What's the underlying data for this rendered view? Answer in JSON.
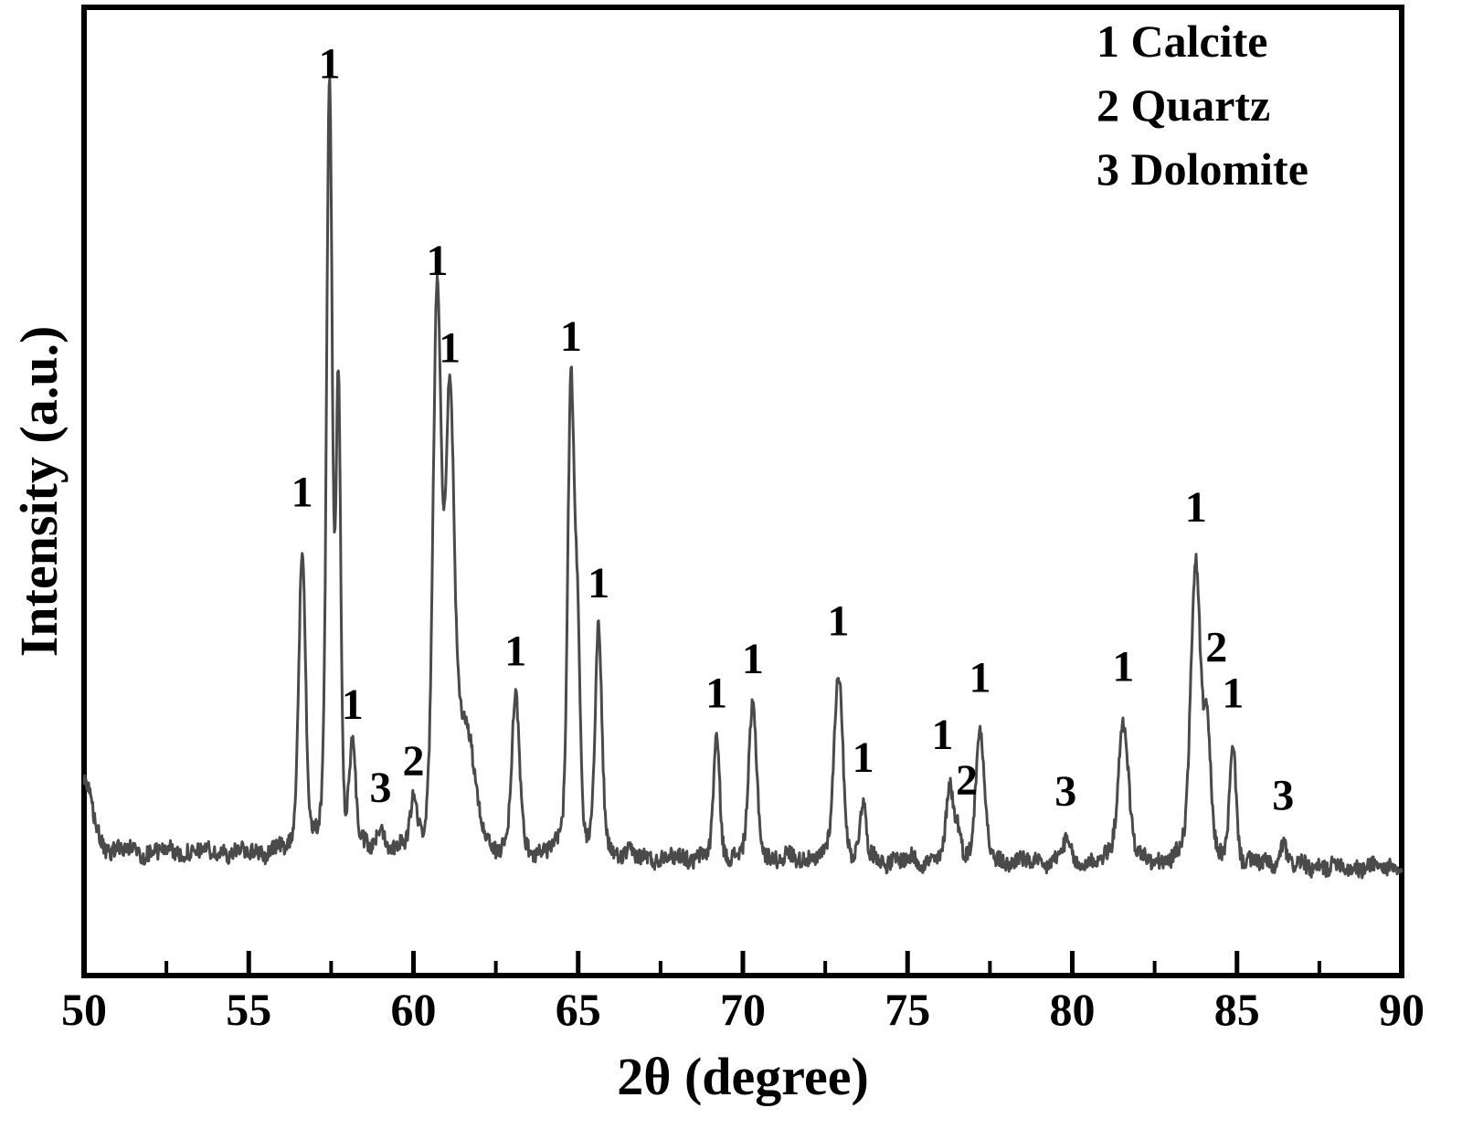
{
  "chart_data": {
    "type": "line",
    "title": "",
    "xlabel": "2θ (degree)",
    "ylabel": "Intensity (a.u.)",
    "xlim": [
      50,
      90
    ],
    "x_major_ticks": [
      50,
      55,
      60,
      65,
      70,
      75,
      80,
      85,
      90
    ],
    "x_minor_tick_step": 2.5,
    "y_ticks_visible": false,
    "grid": false,
    "line_color": "#4a4a4a",
    "frame_color": "#000000",
    "legend": {
      "position": "top-right",
      "entries": [
        "1 Calcite",
        "2 Quartz",
        "3 Dolomite"
      ]
    },
    "phases": [
      {
        "id": "1",
        "name": "Calcite"
      },
      {
        "id": "2",
        "name": "Quartz"
      },
      {
        "id": "3",
        "name": "Dolomite"
      }
    ],
    "peaks": [
      {
        "two_theta": 50.05,
        "rel_intensity": 0.085,
        "width": 0.22,
        "phase": null,
        "label_height": 0,
        "label_dx": 0
      },
      {
        "two_theta": 56.62,
        "rel_intensity": 0.4,
        "width": 0.1,
        "phase": "1",
        "label_height": 0.455,
        "label_dx": 0
      },
      {
        "two_theta": 57.45,
        "rel_intensity": 1.0,
        "width": 0.085,
        "phase": "1",
        "label_height": 1.02,
        "label_dx": 0
      },
      {
        "two_theta": 57.72,
        "rel_intensity": 0.6,
        "width": 0.07,
        "phase": null,
        "label_height": 0,
        "label_dx": 0
      },
      {
        "two_theta": 58.15,
        "rel_intensity": 0.14,
        "width": 0.09,
        "phase": "1",
        "label_height": 0.175,
        "label_dx": 0
      },
      {
        "two_theta": 59.0,
        "rel_intensity": 0.03,
        "width": 0.13,
        "phase": "3",
        "label_height": 0.065,
        "label_dx": 0
      },
      {
        "two_theta": 60.0,
        "rel_intensity": 0.065,
        "width": 0.1,
        "phase": "2",
        "label_height": 0.1,
        "label_dx": 0
      },
      {
        "two_theta": 60.72,
        "rel_intensity": 0.72,
        "width": 0.12,
        "phase": "1",
        "label_height": 0.76,
        "label_dx": 0
      },
      {
        "two_theta": 61.1,
        "rel_intensity": 0.55,
        "width": 0.13,
        "phase": "1",
        "label_height": 0.645,
        "label_dx": 0
      },
      {
        "two_theta": 61.55,
        "rel_intensity": 0.16,
        "width": 0.28,
        "phase": null,
        "label_height": 0,
        "label_dx": 0
      },
      {
        "two_theta": 63.1,
        "rel_intensity": 0.21,
        "width": 0.11,
        "phase": "1",
        "label_height": 0.245,
        "label_dx": 0
      },
      {
        "two_theta": 64.78,
        "rel_intensity": 0.62,
        "width": 0.095,
        "phase": "1",
        "label_height": 0.66,
        "label_dx": 0
      },
      {
        "two_theta": 64.98,
        "rel_intensity": 0.26,
        "width": 0.08,
        "phase": null,
        "label_height": 0,
        "label_dx": 0
      },
      {
        "two_theta": 65.62,
        "rel_intensity": 0.295,
        "width": 0.1,
        "phase": "1",
        "label_height": 0.335,
        "label_dx": 0
      },
      {
        "two_theta": 69.2,
        "rel_intensity": 0.155,
        "width": 0.09,
        "phase": "1",
        "label_height": 0.19,
        "label_dx": 0
      },
      {
        "two_theta": 70.3,
        "rel_intensity": 0.195,
        "width": 0.12,
        "phase": "1",
        "label_height": 0.235,
        "label_dx": 0
      },
      {
        "two_theta": 72.9,
        "rel_intensity": 0.245,
        "width": 0.13,
        "phase": "1",
        "label_height": 0.285,
        "label_dx": 0
      },
      {
        "two_theta": 73.65,
        "rel_intensity": 0.072,
        "width": 0.09,
        "phase": "1",
        "label_height": 0.105,
        "label_dx": 0
      },
      {
        "two_theta": 76.28,
        "rel_intensity": 0.095,
        "width": 0.1,
        "phase": "1",
        "label_height": 0.135,
        "label_dx": -8
      },
      {
        "two_theta": 76.52,
        "rel_intensity": 0.045,
        "width": 0.09,
        "phase": "2",
        "label_height": 0.075,
        "label_dx": 10
      },
      {
        "two_theta": 77.2,
        "rel_intensity": 0.17,
        "width": 0.13,
        "phase": "1",
        "label_height": 0.21,
        "label_dx": 0
      },
      {
        "two_theta": 79.8,
        "rel_intensity": 0.026,
        "width": 0.12,
        "phase": "3",
        "label_height": 0.06,
        "label_dx": 0
      },
      {
        "two_theta": 81.55,
        "rel_intensity": 0.185,
        "width": 0.16,
        "phase": "1",
        "label_height": 0.225,
        "label_dx": 0
      },
      {
        "two_theta": 83.75,
        "rel_intensity": 0.395,
        "width": 0.15,
        "phase": "1",
        "label_height": 0.435,
        "label_dx": 0
      },
      {
        "two_theta": 84.1,
        "rel_intensity": 0.16,
        "width": 0.1,
        "phase": "2",
        "label_height": 0.25,
        "label_dx": 10
      },
      {
        "two_theta": 84.88,
        "rel_intensity": 0.15,
        "width": 0.1,
        "phase": "1",
        "label_height": 0.19,
        "label_dx": 0
      },
      {
        "two_theta": 86.4,
        "rel_intensity": 0.028,
        "width": 0.1,
        "phase": "3",
        "label_height": 0.055,
        "label_dx": 0
      }
    ]
  }
}
